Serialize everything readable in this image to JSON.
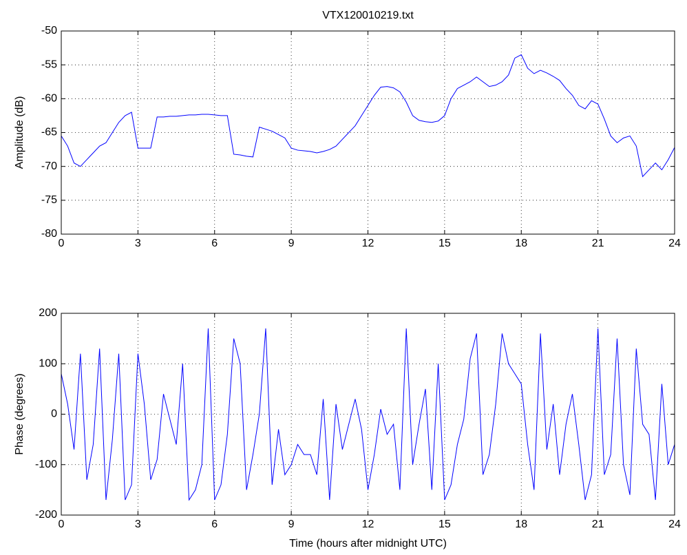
{
  "chart_data": [
    {
      "type": "line",
      "title": "VTX120010219.txt",
      "ylabel": "Amplitude (dB)",
      "color": "#0000ff",
      "grid": true,
      "x": [
        0,
        0.25,
        0.5,
        0.75,
        1,
        1.25,
        1.5,
        1.75,
        2,
        2.25,
        2.5,
        2.75,
        3,
        3.25,
        3.5,
        3.75,
        4,
        4.25,
        4.5,
        4.75,
        5,
        5.25,
        5.5,
        5.75,
        6,
        6.25,
        6.5,
        6.75,
        7,
        7.25,
        7.5,
        7.75,
        8,
        8.25,
        8.5,
        8.75,
        9,
        9.25,
        9.5,
        9.75,
        10,
        10.25,
        10.5,
        10.75,
        11,
        11.25,
        11.5,
        11.75,
        12,
        12.25,
        12.5,
        12.75,
        13,
        13.25,
        13.5,
        13.75,
        14,
        14.25,
        14.5,
        14.75,
        15,
        15.25,
        15.5,
        15.75,
        16,
        16.25,
        16.5,
        16.75,
        17,
        17.25,
        17.5,
        17.75,
        18,
        18.25,
        18.5,
        18.75,
        19,
        19.25,
        19.5,
        19.75,
        20,
        20.25,
        20.5,
        20.75,
        21,
        21.25,
        21.5,
        21.75,
        22,
        22.25,
        22.5,
        22.75,
        23,
        23.25,
        23.5,
        23.75,
        24
      ],
      "values": [
        -65.5,
        -67,
        -69.5,
        -70,
        -69,
        -68,
        -67,
        -66.5,
        -65,
        -63.5,
        -62.5,
        -62,
        -67.3,
        -67.3,
        -67.3,
        -62.7,
        -62.7,
        -62.6,
        -62.6,
        -62.5,
        -62.4,
        -62.4,
        -62.3,
        -62.3,
        -62.4,
        -62.5,
        -62.5,
        -68.2,
        -68.3,
        -68.5,
        -68.6,
        -64.2,
        -64.5,
        -64.8,
        -65.3,
        -65.8,
        -67.3,
        -67.6,
        -67.7,
        -67.8,
        -68,
        -67.8,
        -67.5,
        -67,
        -66,
        -65,
        -64,
        -62.5,
        -61,
        -59.5,
        -58.3,
        -58.2,
        -58.4,
        -59,
        -60.5,
        -62.5,
        -63.2,
        -63.4,
        -63.5,
        -63.3,
        -62.5,
        -60,
        -58.5,
        -58,
        -57.5,
        -56.8,
        -57.5,
        -58.2,
        -58,
        -57.5,
        -56.5,
        -54,
        -53.5,
        -55.5,
        -56.3,
        -55.8,
        -56.2,
        -56.7,
        -57.3,
        -58.5,
        -59.5,
        -61,
        -61.5,
        -60.3,
        -60.8,
        -63,
        -65.5,
        -66.5,
        -65.8,
        -65.5,
        -67,
        -71.5,
        -70.5,
        -69.5,
        -70.5,
        -69,
        -67.2
      ],
      "xlim": [
        0,
        24
      ],
      "xticks": [
        0,
        3,
        6,
        9,
        12,
        15,
        18,
        21,
        24
      ],
      "ylim": [
        -80,
        -50
      ],
      "yticks": [
        -80,
        -75,
        -70,
        -65,
        -60,
        -55,
        -50
      ]
    },
    {
      "type": "line",
      "ylabel": "Phase (degrees)",
      "xlabel": "Time (hours after midnight UTC)",
      "color": "#0000ff",
      "grid": true,
      "x": [
        0,
        0.25,
        0.5,
        0.75,
        1,
        1.25,
        1.5,
        1.75,
        2,
        2.25,
        2.5,
        2.75,
        3,
        3.25,
        3.5,
        3.75,
        4,
        4.25,
        4.5,
        4.75,
        5,
        5.25,
        5.5,
        5.75,
        6,
        6.25,
        6.5,
        6.75,
        7,
        7.25,
        7.5,
        7.75,
        8,
        8.25,
        8.5,
        8.75,
        9,
        9.25,
        9.5,
        9.75,
        10,
        10.25,
        10.5,
        10.75,
        11,
        11.25,
        11.5,
        11.75,
        12,
        12.25,
        12.5,
        12.75,
        13,
        13.25,
        13.5,
        13.75,
        14,
        14.25,
        14.5,
        14.75,
        15,
        15.25,
        15.5,
        15.75,
        16,
        16.25,
        16.5,
        16.75,
        17,
        17.25,
        17.5,
        17.75,
        18,
        18.25,
        18.5,
        18.75,
        19,
        19.25,
        19.5,
        19.75,
        20,
        20.25,
        20.5,
        20.75,
        21,
        21.25,
        21.5,
        21.75,
        22,
        22.25,
        22.5,
        22.75,
        23,
        23.25,
        23.5,
        23.75,
        24
      ],
      "values": [
        80,
        20,
        -70,
        120,
        -130,
        -60,
        130,
        -170,
        -50,
        120,
        -170,
        -140,
        120,
        20,
        -130,
        -90,
        40,
        -10,
        -60,
        100,
        -170,
        -150,
        -100,
        170,
        -170,
        -140,
        -40,
        150,
        100,
        -150,
        -80,
        0,
        170,
        -140,
        -30,
        -120,
        -100,
        -60,
        -80,
        -80,
        -120,
        30,
        -170,
        20,
        -70,
        -20,
        30,
        -30,
        -150,
        -80,
        10,
        -40,
        -20,
        -150,
        170,
        -100,
        -20,
        50,
        -150,
        100,
        -170,
        -140,
        -60,
        -10,
        110,
        160,
        -120,
        -80,
        20,
        160,
        100,
        80,
        60,
        -60,
        -150,
        160,
        -70,
        20,
        -120,
        -20,
        40,
        -60,
        -170,
        -120,
        170,
        -120,
        -80,
        150,
        -100,
        -160,
        130,
        -20,
        -40,
        -170,
        60,
        -100,
        -60
      ],
      "xlim": [
        0,
        24
      ],
      "xticks": [
        0,
        3,
        6,
        9,
        12,
        15,
        18,
        21,
        24
      ],
      "ylim": [
        -200,
        200
      ],
      "yticks": [
        -200,
        -100,
        0,
        100,
        200
      ]
    }
  ]
}
